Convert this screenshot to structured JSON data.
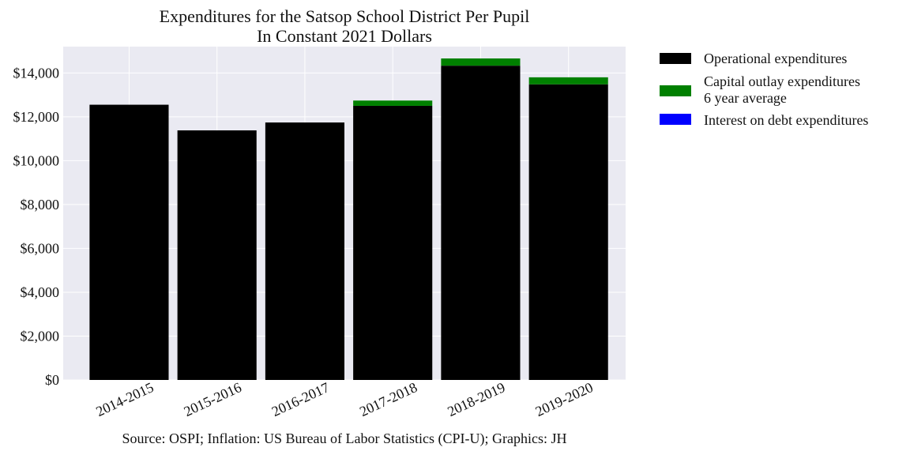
{
  "chart_data": {
    "type": "bar",
    "stacked": true,
    "title_lines": [
      "Expenditures for the Satsop School District Per Pupil",
      "In Constant 2021 Dollars"
    ],
    "xlabel": "",
    "ylabel": "",
    "categories": [
      "2014-2015",
      "2015-2016",
      "2016-2017",
      "2017-2018",
      "2018-2019",
      "2019-2020"
    ],
    "series": [
      {
        "name": "Operational expenditures",
        "color": "#000000",
        "values": [
          12550,
          11380,
          11740,
          12500,
          14330,
          13480
        ]
      },
      {
        "name": "Capital outlay expenditures\n6 year average",
        "color": "#008000",
        "values": [
          0,
          0,
          0,
          240,
          330,
          320
        ]
      },
      {
        "name": "Interest on debt expenditures",
        "color": "#0000ff",
        "values": [
          0,
          0,
          0,
          0,
          0,
          0
        ]
      }
    ],
    "ylim": [
      0,
      15200
    ],
    "yticks": [
      0,
      2000,
      4000,
      6000,
      8000,
      10000,
      12000,
      14000
    ],
    "ytick_labels": [
      "$0",
      "$2,000",
      "$4,000",
      "$6,000",
      "$8,000",
      "$10,000",
      "$12,000",
      "$14,000"
    ],
    "grid": true,
    "plot_background": "#eaeaf2",
    "legend_position": "outside-right-top",
    "source_note": "Source: OSPI; Inflation: US Bureau of Labor Statistics (CPI-U); Graphics: JH"
  }
}
